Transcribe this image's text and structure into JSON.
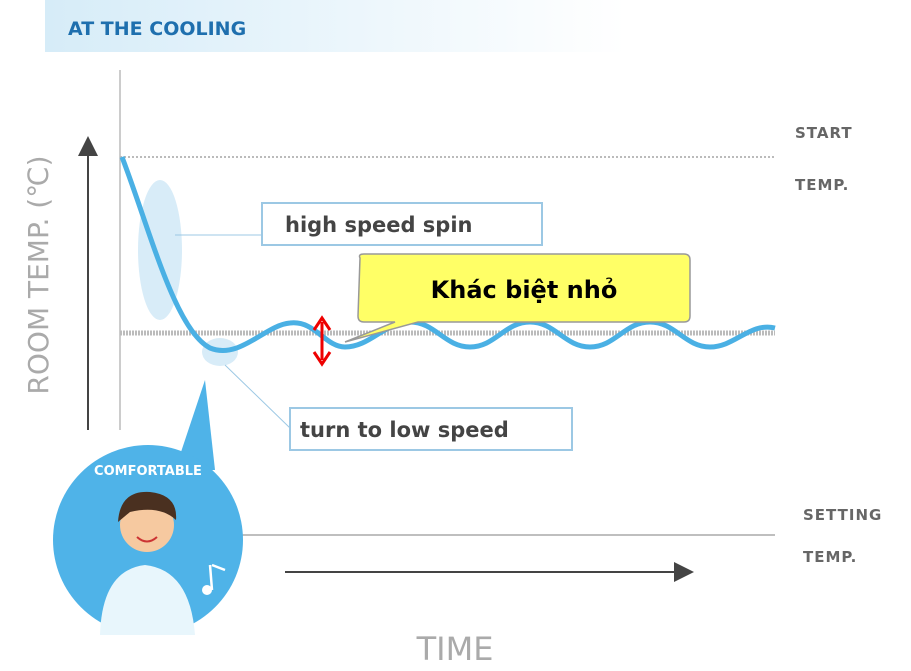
{
  "header": {
    "title": "AT THE COOLING"
  },
  "axes": {
    "y_label": "ROOM TEMP. (℃)",
    "x_label": "TIME"
  },
  "levels": {
    "start": [
      "START",
      "TEMP."
    ],
    "setting": [
      "SETTING",
      "TEMP."
    ]
  },
  "callouts": {
    "high": "high speed spin",
    "low": "turn to low speed",
    "note": "Khác biệt nhỏ"
  },
  "badge": "COMFORTABLE"
}
